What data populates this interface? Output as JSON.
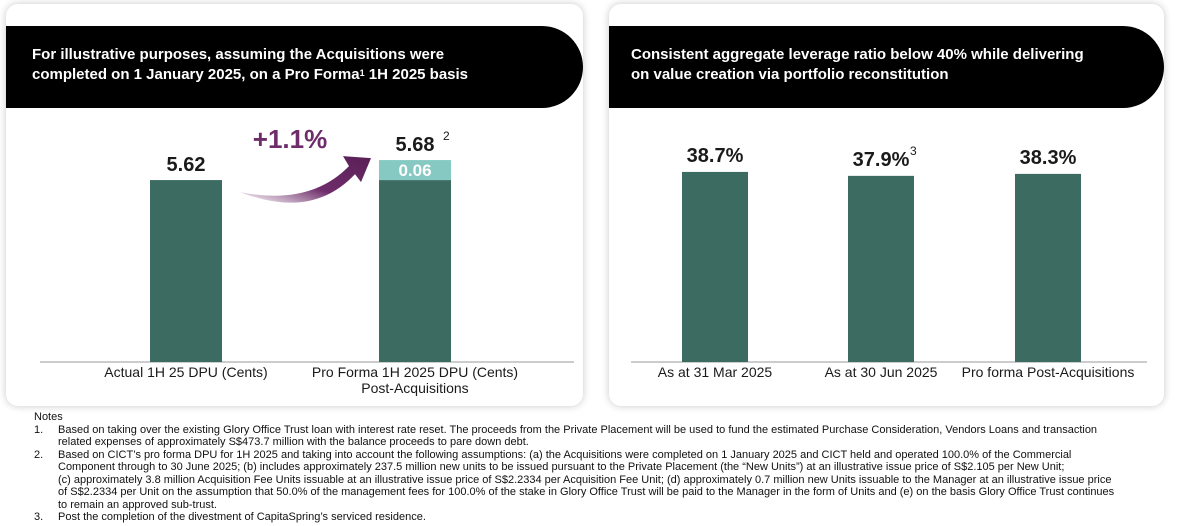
{
  "left_panel": {
    "header_line1": "For illustrative purposes, assuming the Acquisitions were",
    "header_line2a": "completed on 1 January 2025, on a Pro Forma",
    "header_sup": "1",
    "header_line2b": " 1H 2025 basis"
  },
  "right_panel": {
    "header_line1": "Consistent aggregate leverage ratio below 40% while delivering",
    "header_line2": "on value creation via portfolio reconstitution"
  },
  "colors": {
    "bar": "#3c6b62",
    "increment": "#86c8c2",
    "arrow": "#6e2d6a",
    "header_bg": "#000000"
  },
  "chart_data": [
    {
      "type": "bar",
      "stacked": true,
      "categories": [
        "Actual 1H 25 DPU (Cents)",
        "Pro Forma 1H 2025 DPU (Cents)"
      ],
      "category_sublabels": [
        "",
        "Post-Acquisitions"
      ],
      "series": [
        {
          "values": [
            5.62,
            5.62
          ]
        },
        {
          "values": [
            0,
            0.06
          ]
        }
      ],
      "totals": [
        "5.62",
        "5.68"
      ],
      "increment_label": "0.06",
      "total_footnote": [
        "",
        "2"
      ],
      "change_annotation": "+1.1%",
      "ylim": [
        0,
        5.9
      ]
    },
    {
      "type": "bar",
      "categories": [
        "As at 31 Mar 2025",
        "As at 30 Jun 2025",
        "Pro forma Post-Acquisitions"
      ],
      "values": [
        38.7,
        37.9,
        38.3
      ],
      "value_labels": [
        "38.7%",
        "37.9%",
        "38.3%"
      ],
      "value_footnotes": [
        "",
        "3",
        ""
      ],
      "ylim": [
        0,
        39.5
      ]
    }
  ],
  "notes": {
    "title": "Notes",
    "items": [
      {
        "num": "1.",
        "lines": [
          "Based on taking over the existing Glory Office Trust loan with interest rate reset. The proceeds from the Private Placement will be used to fund the estimated Purchase Consideration, Vendors Loans and transaction",
          "related expenses of approximately S$473.7 million with the balance proceeds to pare down debt."
        ]
      },
      {
        "num": "2.",
        "lines": [
          "Based on CICT’s pro forma DPU for 1H 2025 and taking into account the following assumptions: (a) the Acquisitions were completed on 1 January 2025 and CICT held and operated 100.0% of the Commercial",
          "Component through to 30 June 2025; (b) includes approximately 237.5 million new units to be issued pursuant to the Private Placement (the “New Units”) at an illustrative issue price of S$2.105 per New Unit;",
          "(c) approximately 3.8 million Acquisition Fee Units issuable at an illustrative issue price of S$2.2334 per Acquisition Fee Unit; (d) approximately 0.7 million new Units issuable to the Manager at an illustrative issue price",
          "of S$2.2334 per Unit on the assumption that 50.0% of the management fees for 100.0% of the stake in Glory Office Trust will be paid to the Manager in the form of Units and (e) on the basis Glory Office Trust continues",
          "to remain an approved sub-trust."
        ]
      },
      {
        "num": "3.",
        "lines": [
          "Post the completion of the divestment of CapitaSpring’s serviced residence."
        ]
      }
    ]
  }
}
